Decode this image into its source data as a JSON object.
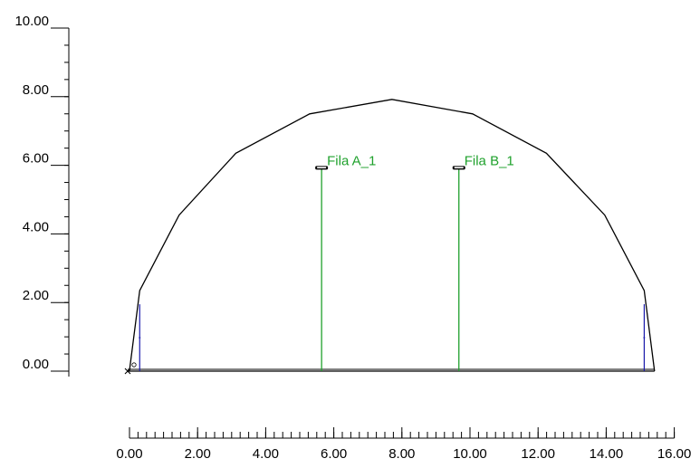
{
  "chart_data": {
    "type": "diagram",
    "x_axis": {
      "range": [
        0,
        16
      ],
      "major_ticks": [
        0,
        2,
        4,
        6,
        8,
        10,
        12,
        14,
        16
      ],
      "tick_labels": [
        "0.00",
        "2.00",
        "4.00",
        "6.00",
        "8.00",
        "10.00",
        "12.00",
        "14.00",
        "16.00"
      ],
      "minor_step": 0.25
    },
    "y_axis": {
      "range": [
        0,
        10
      ],
      "major_ticks": [
        0,
        2,
        4,
        6,
        8,
        10
      ],
      "tick_labels": [
        "0.00",
        "2.00",
        "4.00",
        "6.00",
        "8.00",
        "10.00"
      ],
      "minor_step": 0.5
    },
    "outline": {
      "color": "#000000",
      "points": [
        [
          0.05,
          0
        ],
        [
          0.35,
          2.35
        ],
        [
          1.5,
          4.55
        ],
        [
          3.15,
          6.35
        ],
        [
          5.3,
          7.5
        ],
        [
          7.7,
          7.92
        ],
        [
          10.05,
          7.5
        ],
        [
          12.2,
          6.35
        ],
        [
          13.9,
          4.55
        ],
        [
          15.05,
          2.35
        ],
        [
          15.35,
          0
        ]
      ]
    },
    "floor": {
      "from": 0.0,
      "to": 15.35,
      "color": "#000000"
    },
    "origin_marker": {
      "x": 0.0,
      "y": 0.0,
      "symbol": "x"
    },
    "side_posts": [
      {
        "x": 0.35,
        "y_bottom": 0.0,
        "y_top": 1.95,
        "color": "#1a1aaa"
      },
      {
        "x": 15.05,
        "y_bottom": 0.0,
        "y_top": 1.95,
        "color": "#1a1aaa"
      }
    ],
    "rows": [
      {
        "label": "Fila A_1",
        "x": 5.65,
        "height": 5.9,
        "color": "#1fa12c"
      },
      {
        "label": "Fila B_1",
        "x": 9.65,
        "height": 5.9,
        "color": "#1fa12c"
      }
    ]
  }
}
